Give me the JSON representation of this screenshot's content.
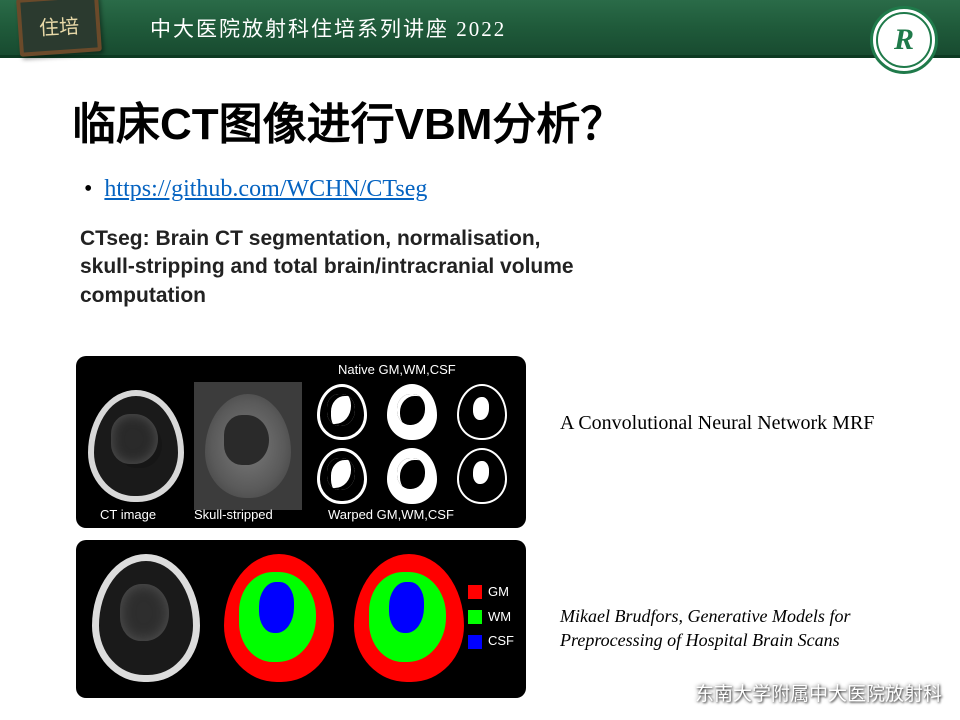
{
  "header": {
    "chalkboard_text": "住培",
    "title": "中大医院放射科住培系列讲座 2022",
    "logo_letter": "R"
  },
  "slide": {
    "title": "临床CT图像进行VBM分析？",
    "link_text": "https://github.com/WCHN/CTseg",
    "ctseg_heading": "CTseg: Brain CT segmentation, normalisation, skull-stripping and total brain/intracranial volume computation"
  },
  "panel1_labels": {
    "native": "Native GM,WM,CSF",
    "ct": "CT image",
    "skull": "Skull-stripped",
    "warped": "Warped GM,WM,CSF"
  },
  "legend": {
    "gm": "GM",
    "wm": "WM",
    "csf": "CSF",
    "gm_color": "#ff0000",
    "wm_color": "#00ff00",
    "csf_color": "#0000ff"
  },
  "side": {
    "text1": "A Convolutional Neural Network MRF",
    "text2": "Mikael Brudfors, Generative Models for Preprocessing of Hospital Brain Scans"
  },
  "watermark": "东南大学附属中大医院放射科",
  "colors": {
    "header_bg": "#1f5a3a",
    "link": "#0563c1"
  }
}
